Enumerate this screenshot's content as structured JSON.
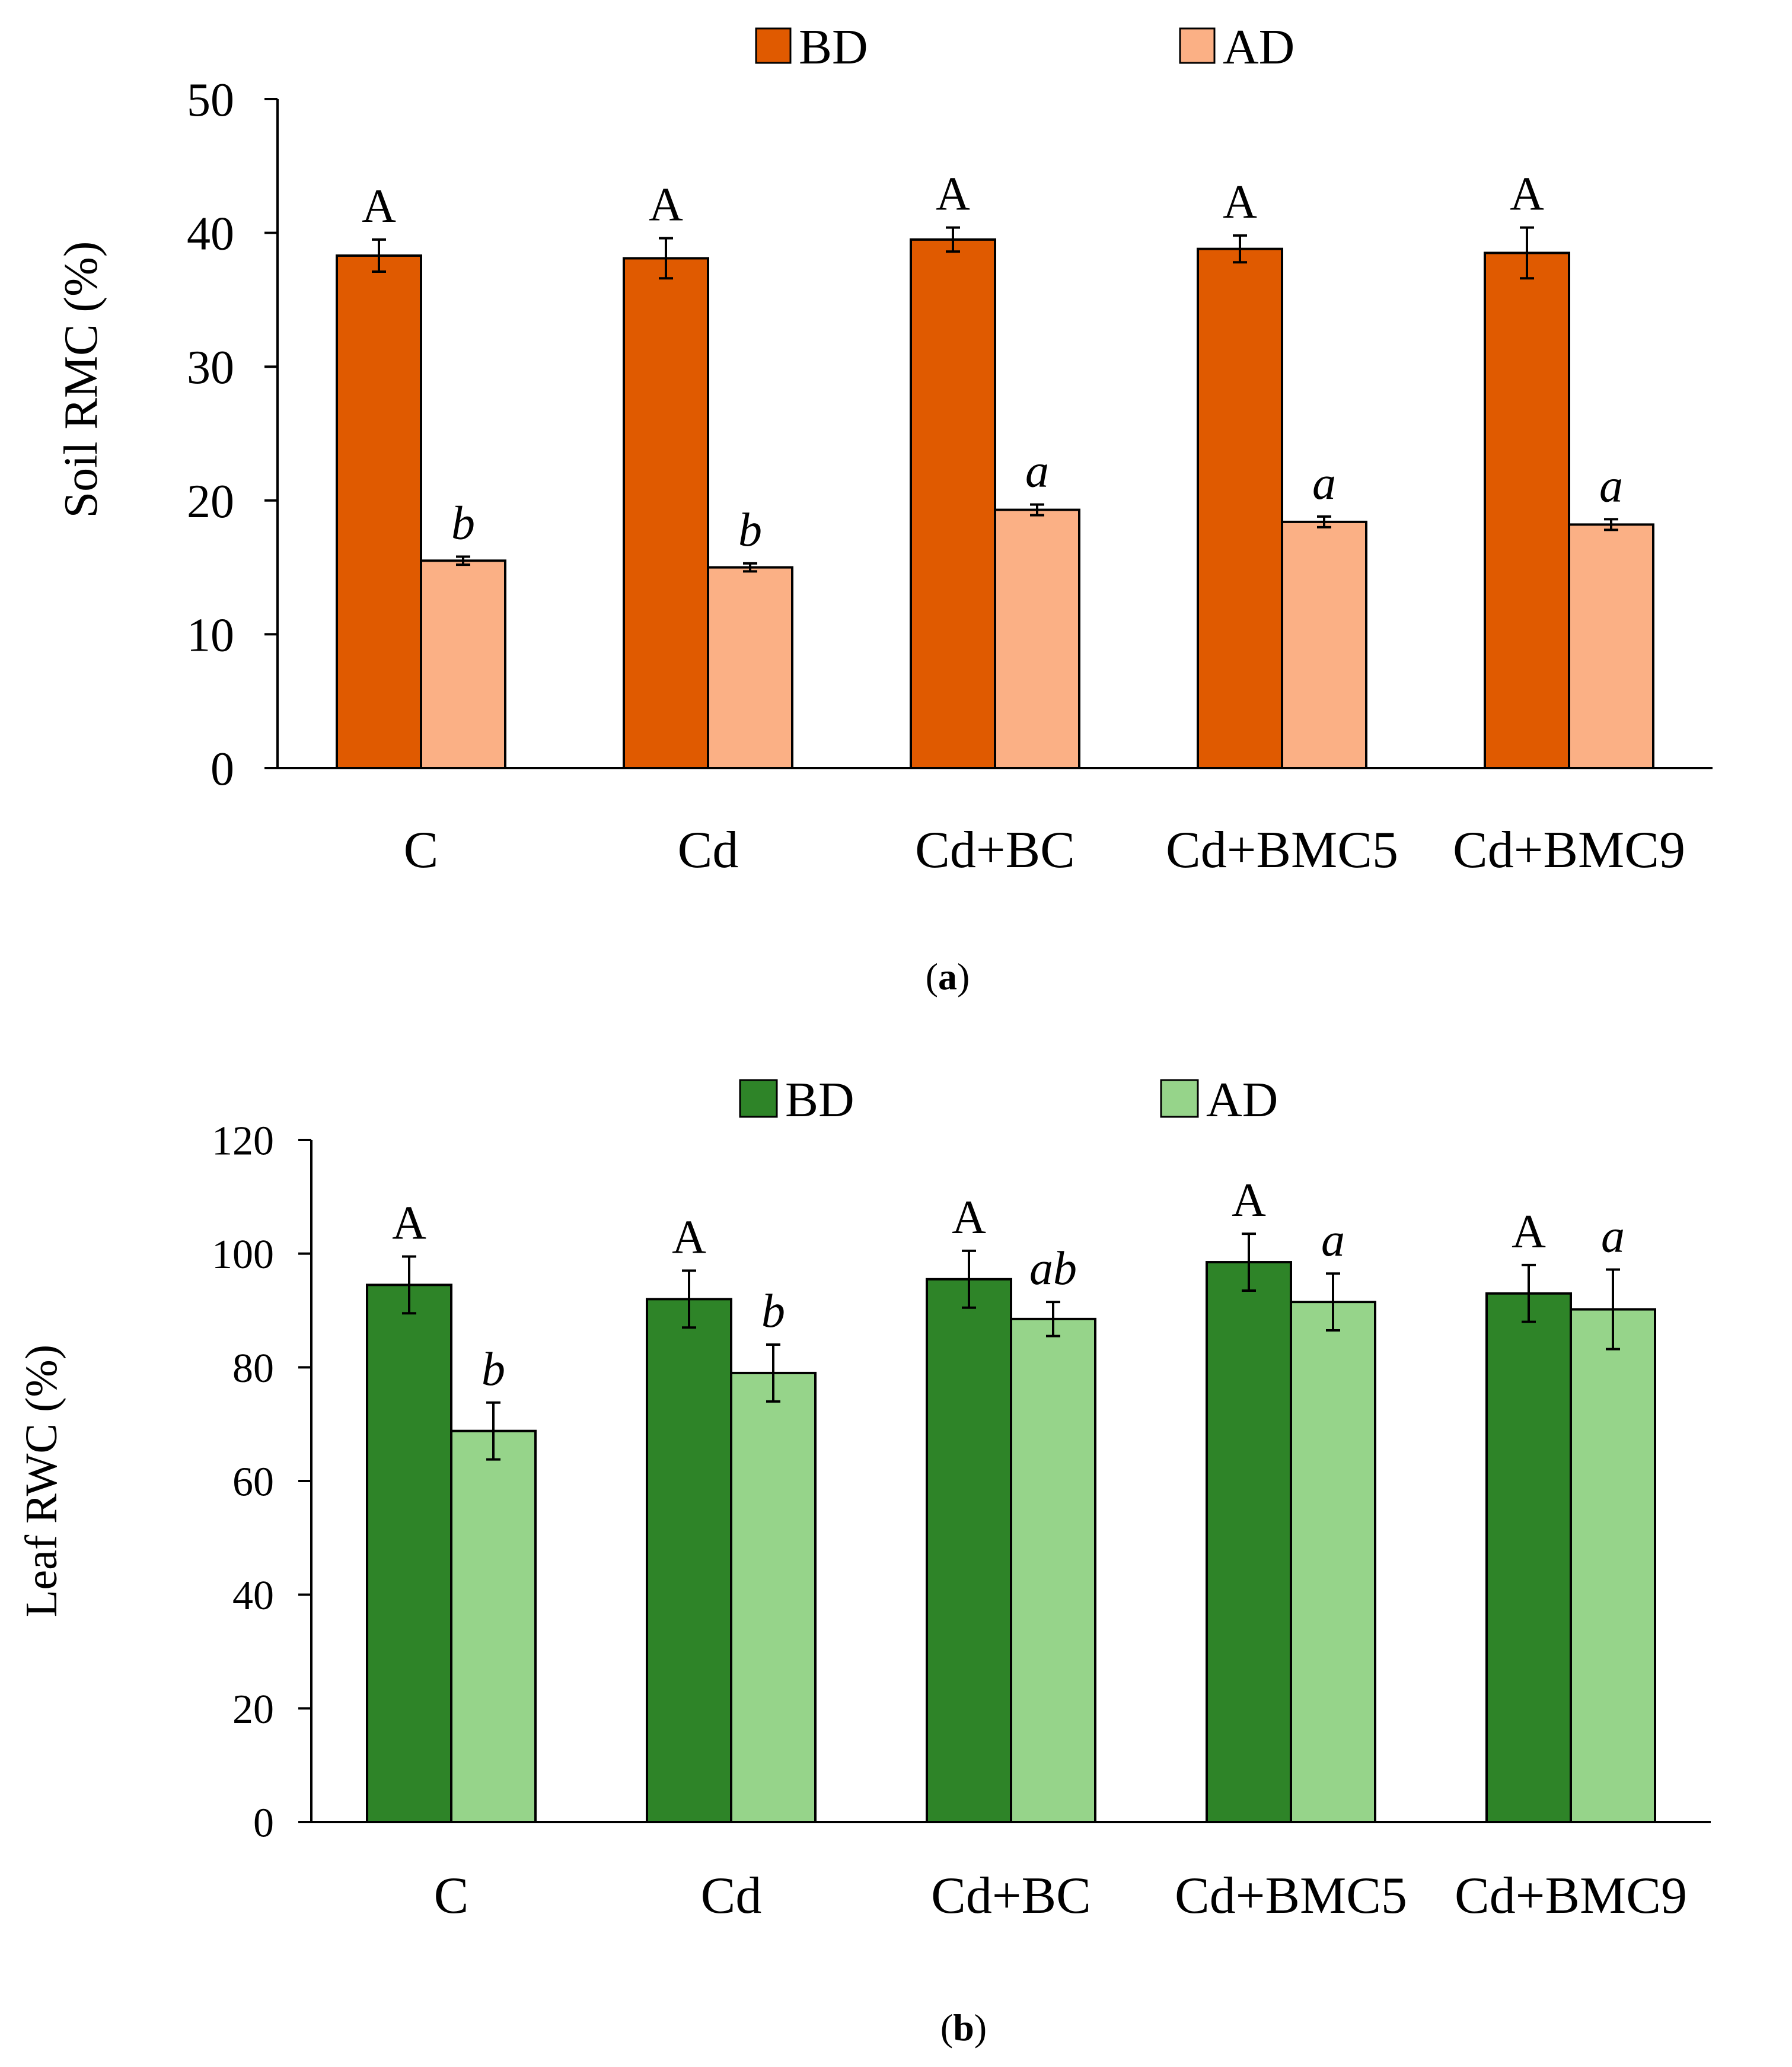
{
  "chart_data": [
    {
      "id": "a",
      "type": "bar",
      "caption": "a",
      "ylabel": "Soil RMC (%)",
      "xlabel": "",
      "ylim": [
        0,
        50
      ],
      "yticks": [
        0,
        10,
        20,
        30,
        40,
        50
      ],
      "grid": false,
      "legend_position": "top-center",
      "categories": [
        "C",
        "Cd",
        "Cd+BC",
        "Cd+BMC5",
        "Cd+BMC9"
      ],
      "series": [
        {
          "name": "BD",
          "color": "#E05A00",
          "values": [
            38.3,
            38.1,
            39.5,
            38.8,
            38.5
          ],
          "errors": [
            1.2,
            1.5,
            0.9,
            1.0,
            1.9
          ],
          "labels": [
            "A",
            "A",
            "A",
            "A",
            "A"
          ],
          "label_style": "upright"
        },
        {
          "name": "AD",
          "color": "#FBB085",
          "values": [
            15.5,
            15.0,
            19.3,
            18.4,
            18.2
          ],
          "errors": [
            0.3,
            0.3,
            0.4,
            0.4,
            0.4
          ],
          "labels": [
            "b",
            "b",
            "a",
            "a",
            "a"
          ],
          "label_style": "italic"
        }
      ]
    },
    {
      "id": "b",
      "type": "bar",
      "caption": "b",
      "ylabel": "Leaf RWC (%)",
      "xlabel": "",
      "ylim": [
        0,
        120
      ],
      "yticks": [
        0,
        20,
        40,
        60,
        80,
        100,
        120
      ],
      "grid": false,
      "legend_position": "top-center",
      "categories": [
        "C",
        "Cd",
        "Cd+BC",
        "Cd+BMC5",
        "Cd+BMC9"
      ],
      "series": [
        {
          "name": "BD",
          "color": "#2E8428",
          "values": [
            94.5,
            92.0,
            95.5,
            98.5,
            93.0
          ],
          "errors": [
            5.0,
            5.0,
            5.0,
            5.0,
            5.0
          ],
          "labels": [
            "A",
            "A",
            "A",
            "A",
            "A"
          ],
          "label_style": "upright"
        },
        {
          "name": "AD",
          "color": "#96D48A",
          "values": [
            68.8,
            79.0,
            88.5,
            91.5,
            90.2
          ],
          "errors": [
            5.0,
            5.0,
            3.0,
            5.0,
            7.0
          ],
          "labels": [
            "b",
            "b",
            "ab",
            "a",
            "a"
          ],
          "label_style": "italic"
        }
      ]
    }
  ]
}
